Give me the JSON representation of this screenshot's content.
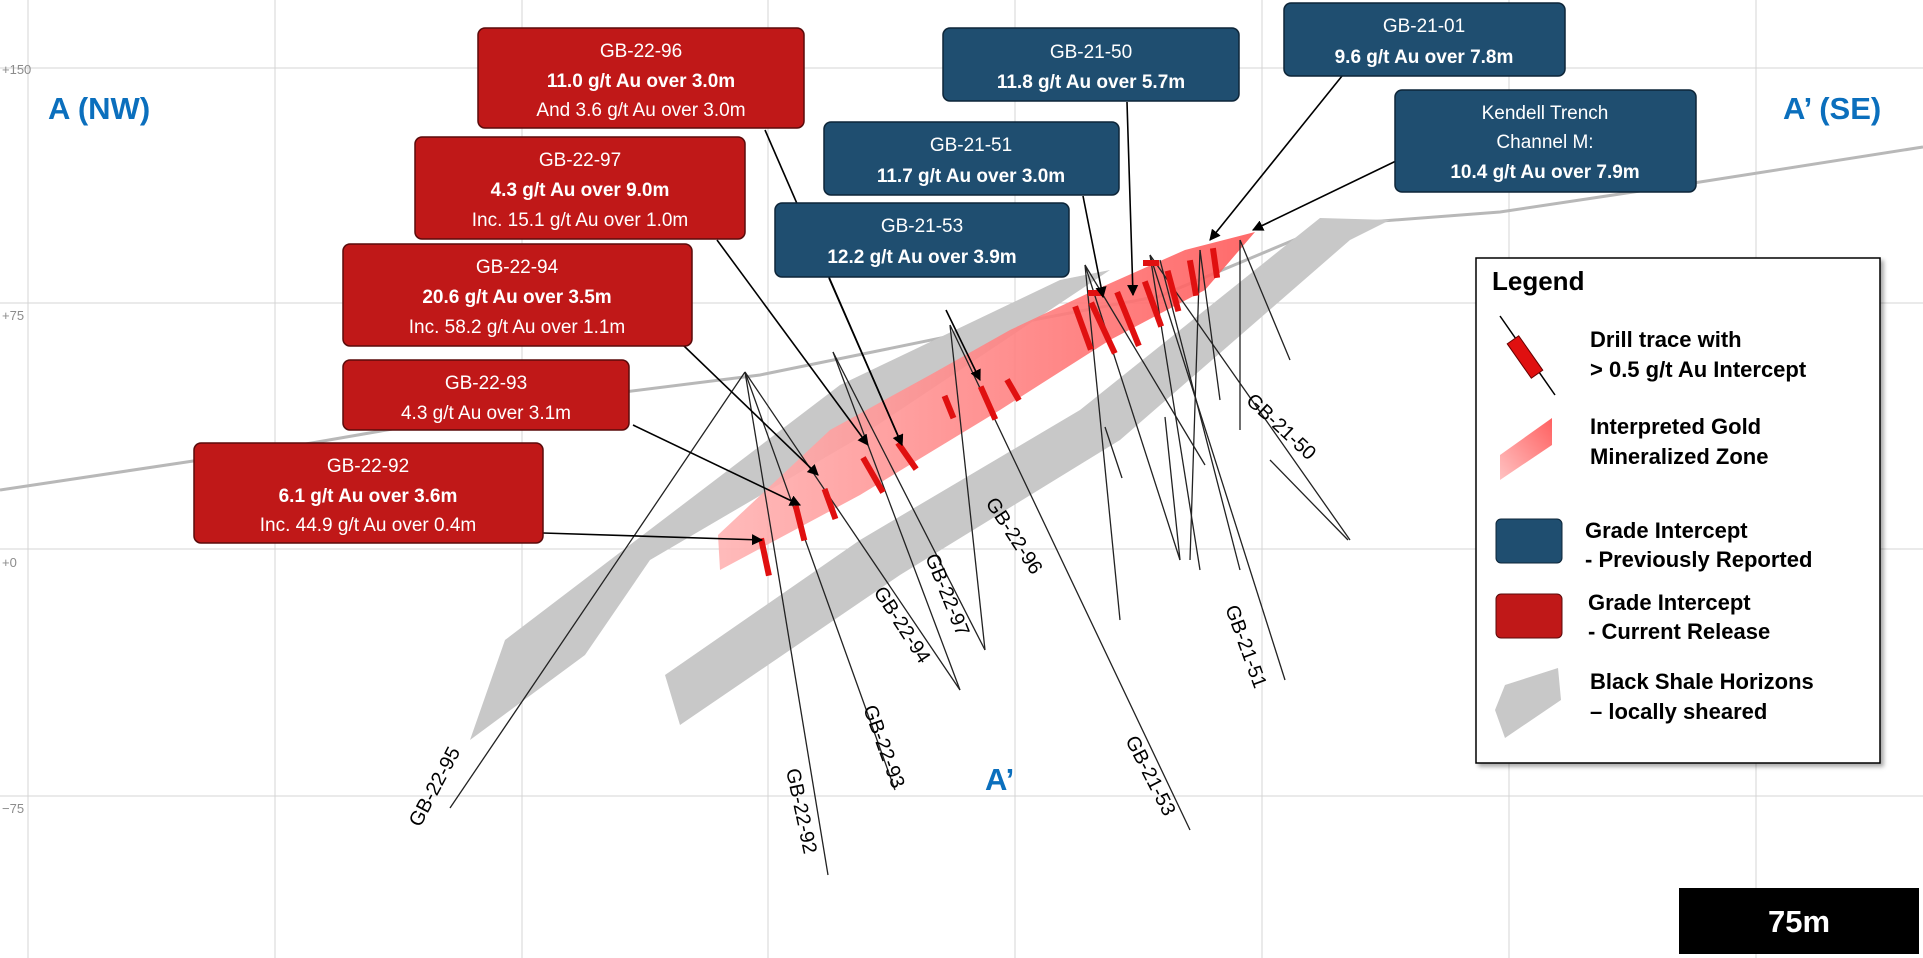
{
  "section": {
    "left_label": "A (NW)",
    "right_label": "A’ (SE)",
    "bottom_label": "A’"
  },
  "elevation_ticks": [
    "+150",
    "+75",
    "+0",
    "−75"
  ],
  "scale_bar": "75m",
  "colors": {
    "blue_box": "#1f4e70",
    "red_box": "#c01818",
    "zone": "#ff7d7d",
    "shale": "#c8c8c8",
    "grid": "#d4d4d4",
    "section_label": "#0b6fbd"
  },
  "callouts_blue": [
    {
      "hole": "GB-21-50",
      "lines": [
        "11.8 g/t Au over 5.7m"
      ]
    },
    {
      "hole": "GB-21-01",
      "lines": [
        "9.6 g/t Au over 7.8m"
      ]
    },
    {
      "hole": "GB-21-51",
      "lines": [
        "11.7 g/t Au over 3.0m"
      ]
    },
    {
      "hole": "GB-21-53",
      "lines": [
        "12.2 g/t Au over 3.9m"
      ]
    },
    {
      "title_lines": [
        "Kendell Trench",
        "Channel M:"
      ],
      "lines": [
        "10.4 g/t Au over 7.9m"
      ]
    }
  ],
  "callouts_red": [
    {
      "hole": "GB-22-96",
      "bold": "11.0 g/t Au over 3.0m",
      "extra": "And 3.6 g/t Au over 3.0m"
    },
    {
      "hole": "GB-22-97",
      "bold": "4.3 g/t Au over 9.0m",
      "extra": "Inc. 15.1 g/t Au over 1.0m"
    },
    {
      "hole": "GB-22-94",
      "bold": "20.6 g/t Au over 3.5m",
      "extra": "Inc. 58.2 g/t Au over 1.1m"
    },
    {
      "hole": "GB-22-93",
      "bold": "",
      "extra": "4.3 g/t Au over 3.1m"
    },
    {
      "hole": "GB-22-92",
      "bold": "6.1 g/t Au over 3.6m",
      "extra": "Inc. 44.9 g/t Au over 0.4m"
    }
  ],
  "hole_labels": [
    "GB-22-95",
    "GB-22-92",
    "GB-22-93",
    "GB-22-94",
    "GB-22-97",
    "GB-22-96",
    "GB-21-53",
    "GB-21-51",
    "GB-21-50"
  ],
  "legend": {
    "title": "Legend",
    "items": [
      {
        "icon": "drill-trace-icon",
        "lines": [
          "Drill trace with",
          "> 0.5 g/t Au Intercept"
        ]
      },
      {
        "icon": "mineralized-zone-icon",
        "lines": [
          "Interpreted Gold",
          "Mineralized Zone"
        ]
      },
      {
        "icon": "blue-box-icon",
        "lines": [
          "Grade Intercept",
          "- Previously Reported"
        ]
      },
      {
        "icon": "red-box-icon",
        "lines": [
          "Grade Intercept",
          "- Current Release"
        ]
      },
      {
        "icon": "shale-icon",
        "lines": [
          "Black Shale Horizons",
          "– locally sheared"
        ]
      }
    ]
  }
}
